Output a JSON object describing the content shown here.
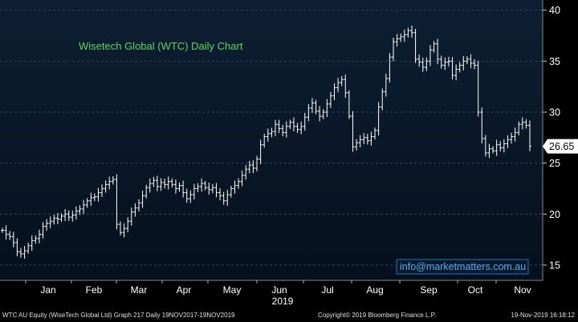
{
  "colors": {
    "background_top": "#0d1f33",
    "background_bottom": "#06101d",
    "bars": "#ffffff",
    "title": "#5cd65c",
    "grid": "#2f4766",
    "axis_text": "#ffffff",
    "watermark": "#5fa8e8",
    "price_tag_bg": "#ffffff",
    "price_tag_text": "#000000"
  },
  "chart_data": {
    "type": "ohlc",
    "title": "Wisetech Global (WTC) Daily Chart",
    "xlabel": "2019",
    "ylabel": "",
    "ylim": [
      13.5,
      41
    ],
    "y_ticks": [
      15,
      20,
      25,
      30,
      35,
      40
    ],
    "x_tick_labels": [
      "Jan",
      "Feb",
      "Mar",
      "Apr",
      "May",
      "Jun",
      "Jul",
      "Aug",
      "Sep",
      "Oct",
      "Nov"
    ],
    "last_price": "26.65",
    "grid": "horizontal dashed",
    "watermark": "info@marketmatters.com.au",
    "series": [
      {
        "values": [
          18.4,
          18.0,
          17.8,
          17.2,
          16.3,
          16.1,
          16.4,
          16.9,
          17.4,
          17.6,
          18.0,
          18.8,
          19.1,
          19.3,
          19.6,
          19.5,
          19.8,
          20.0,
          19.7,
          19.9,
          20.3,
          20.5,
          20.9,
          21.3,
          21.6,
          21.7,
          22.1,
          22.5,
          22.9,
          23.2,
          23.4,
          19.0,
          18.2,
          18.6,
          19.3,
          20.2,
          20.6,
          21.1,
          21.8,
          22.6,
          23.0,
          23.3,
          22.7,
          23.1,
          22.9,
          23.2,
          22.9,
          22.5,
          22.8,
          22.1,
          21.5,
          21.9,
          22.5,
          22.7,
          23.0,
          22.6,
          22.4,
          22.6,
          22.1,
          21.8,
          21.3,
          21.9,
          22.5,
          22.8,
          23.2,
          23.8,
          24.4,
          24.8,
          24.5,
          25.4,
          26.8,
          27.6,
          27.9,
          28.1,
          28.8,
          28.4,
          28.0,
          28.6,
          29.0,
          28.6,
          28.3,
          28.6,
          29.5,
          30.4,
          30.9,
          30.1,
          29.6,
          30.0,
          30.8,
          31.6,
          32.4,
          32.9,
          33.2,
          31.9,
          29.6,
          26.6,
          27.0,
          27.3,
          27.5,
          27.2,
          27.6,
          28.2,
          30.5,
          32.0,
          33.3,
          35.4,
          36.9,
          37.2,
          37.4,
          37.6,
          38.0,
          37.8,
          35.2,
          34.9,
          34.4,
          35.0,
          36.1,
          36.7,
          35.2,
          34.6,
          34.9,
          35.0,
          33.6,
          34.2,
          34.6,
          35.0,
          35.2,
          34.8,
          34.6,
          30.0,
          27.4,
          26.0,
          26.4,
          26.2,
          26.8,
          26.5,
          26.9,
          27.3,
          27.6,
          28.0,
          28.8,
          29.0,
          28.7,
          26.65
        ]
      }
    ]
  },
  "footer": {
    "left": "WTC AU Equity (WiseTech Global Ltd) Graph 217  Daily 19NOV2017-19NOV2019",
    "center": "Copyright© 2019 Bloomberg Finance L.P.",
    "right": "19-Nov-2019 16:18:12"
  }
}
